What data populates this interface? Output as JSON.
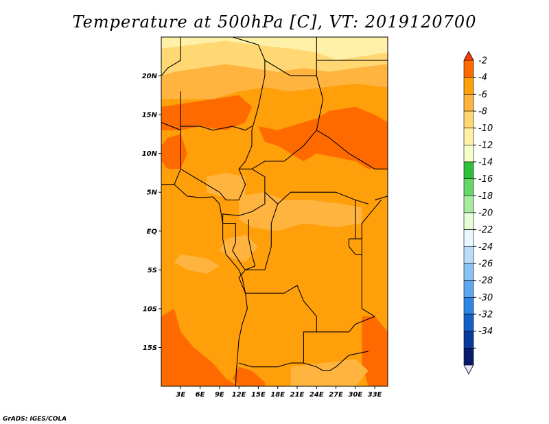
{
  "title": "Temperature at 500hPa [C], VT: 2019120700",
  "credit": "GrADS: IGES/COLA",
  "map": {
    "lon_range": [
      0,
      35
    ],
    "lat_range": [
      -20,
      25
    ],
    "lon_ticks": [
      {
        "value": 3,
        "label": "3E"
      },
      {
        "value": 6,
        "label": "6E"
      },
      {
        "value": 9,
        "label": "9E"
      },
      {
        "value": 12,
        "label": "12E"
      },
      {
        "value": 15,
        "label": "15E"
      },
      {
        "value": 18,
        "label": "18E"
      },
      {
        "value": 21,
        "label": "21E"
      },
      {
        "value": 24,
        "label": "24E"
      },
      {
        "value": 27,
        "label": "27E"
      },
      {
        "value": 30,
        "label": "30E"
      },
      {
        "value": 33,
        "label": "33E"
      }
    ],
    "lat_ticks": [
      {
        "value": 20,
        "label": "20N"
      },
      {
        "value": 15,
        "label": "15N"
      },
      {
        "value": 10,
        "label": "10N"
      },
      {
        "value": 5,
        "label": "5N"
      },
      {
        "value": 0,
        "label": "EQ"
      },
      {
        "value": -5,
        "label": "5S"
      },
      {
        "value": -10,
        "label": "10S"
      },
      {
        "value": -15,
        "label": "15S"
      }
    ],
    "colors": {
      "c2": "#ff6a00",
      "c4": "#ff9f0a",
      "c6": "#ffb440",
      "c8": "#ffd873",
      "c10": "#fff0a8"
    },
    "regions": [
      {
        "level": "c10",
        "poly": [
          [
            0,
            25
          ],
          [
            35,
            25
          ],
          [
            35,
            23
          ],
          [
            31,
            22.5
          ],
          [
            27,
            22
          ],
          [
            24,
            23
          ],
          [
            20,
            23.5
          ],
          [
            14,
            24
          ],
          [
            10,
            24.5
          ],
          [
            5,
            24
          ],
          [
            0,
            23.5
          ]
        ]
      },
      {
        "level": "c8",
        "poly": [
          [
            0,
            23.5
          ],
          [
            5,
            24
          ],
          [
            10,
            24.5
          ],
          [
            14,
            24
          ],
          [
            20,
            23.5
          ],
          [
            24,
            23
          ],
          [
            27,
            22
          ],
          [
            31,
            22.5
          ],
          [
            35,
            23
          ],
          [
            35,
            21.5
          ],
          [
            30,
            21
          ],
          [
            26,
            20.5
          ],
          [
            22,
            21
          ],
          [
            18,
            20.5
          ],
          [
            14,
            21
          ],
          [
            10,
            21.5
          ],
          [
            6,
            21
          ],
          [
            2,
            20.5
          ],
          [
            0,
            20
          ]
        ]
      },
      {
        "level": "c6",
        "poly": [
          [
            0,
            20
          ],
          [
            2,
            20.5
          ],
          [
            6,
            21
          ],
          [
            10,
            21.5
          ],
          [
            14,
            21
          ],
          [
            18,
            20.5
          ],
          [
            22,
            21
          ],
          [
            26,
            20.5
          ],
          [
            30,
            21
          ],
          [
            35,
            21.5
          ],
          [
            35,
            18.5
          ],
          [
            30,
            19
          ],
          [
            25,
            18.5
          ],
          [
            20,
            18
          ],
          [
            16,
            18.5
          ],
          [
            12,
            18
          ],
          [
            8,
            17
          ],
          [
            4,
            17
          ],
          [
            0,
            17
          ]
        ]
      },
      {
        "level": "c2",
        "poly": [
          [
            0,
            16
          ],
          [
            4,
            16.5
          ],
          [
            8,
            17
          ],
          [
            12,
            17.5
          ],
          [
            14,
            16
          ],
          [
            13,
            14
          ],
          [
            10,
            13
          ],
          [
            6,
            13.5
          ],
          [
            3,
            13
          ],
          [
            0,
            13
          ]
        ]
      },
      {
        "level": "c2",
        "poly": [
          [
            15,
            13.5
          ],
          [
            18,
            13
          ],
          [
            20,
            13.5
          ],
          [
            22,
            14
          ],
          [
            24,
            14.5
          ],
          [
            26,
            15.5
          ],
          [
            30,
            16
          ],
          [
            33,
            15
          ],
          [
            35,
            14
          ],
          [
            35,
            8
          ],
          [
            32,
            8
          ],
          [
            30,
            9
          ],
          [
            27,
            9.5
          ],
          [
            24,
            10
          ],
          [
            22,
            9
          ],
          [
            20,
            10
          ],
          [
            18,
            11
          ],
          [
            16,
            11.5
          ]
        ]
      },
      {
        "level": "c2",
        "poly": [
          [
            1,
            12
          ],
          [
            3,
            12.5
          ],
          [
            4,
            10
          ],
          [
            3,
            8
          ],
          [
            1,
            8
          ],
          [
            0,
            9
          ],
          [
            0,
            11
          ]
        ]
      },
      {
        "level": "c6",
        "poly": [
          [
            7,
            7
          ],
          [
            10,
            7.5
          ],
          [
            13,
            7
          ],
          [
            13,
            4.5
          ],
          [
            11,
            4
          ],
          [
            9,
            4.5
          ],
          [
            7,
            5
          ]
        ]
      },
      {
        "level": "c6",
        "poly": [
          [
            12,
            4.5
          ],
          [
            16,
            5
          ],
          [
            19,
            4
          ],
          [
            23,
            4
          ],
          [
            28,
            3.5
          ],
          [
            31,
            3
          ],
          [
            31,
            1
          ],
          [
            27,
            0.5
          ],
          [
            22,
            1
          ],
          [
            18,
            0
          ],
          [
            14,
            0.5
          ],
          [
            12,
            1.5
          ]
        ]
      },
      {
        "level": "c6",
        "poly": [
          [
            10,
            -1
          ],
          [
            13,
            -0.5
          ],
          [
            15,
            -2
          ],
          [
            13,
            -4
          ],
          [
            11,
            -3.5
          ],
          [
            9,
            -2.5
          ]
        ]
      },
      {
        "level": "c6",
        "poly": [
          [
            3,
            -3
          ],
          [
            7,
            -3.5
          ],
          [
            9,
            -4.5
          ],
          [
            7,
            -5.5
          ],
          [
            4,
            -5
          ],
          [
            2,
            -4
          ]
        ]
      },
      {
        "level": "c2",
        "poly": [
          [
            0,
            -11
          ],
          [
            2,
            -10
          ],
          [
            3,
            -13
          ],
          [
            5,
            -15
          ],
          [
            8,
            -17
          ],
          [
            10,
            -19
          ],
          [
            12,
            -20
          ],
          [
            0,
            -20
          ]
        ]
      },
      {
        "level": "c2",
        "poly": [
          [
            12,
            -17.5
          ],
          [
            14,
            -18
          ],
          [
            16,
            -19.5
          ],
          [
            16,
            -20
          ],
          [
            12,
            -20
          ],
          [
            11,
            -19
          ]
        ]
      },
      {
        "level": "c2",
        "poly": [
          [
            31,
            -11
          ],
          [
            33,
            -11
          ],
          [
            35,
            -13
          ],
          [
            35,
            -20
          ],
          [
            32,
            -20
          ],
          [
            31,
            -17
          ],
          [
            31,
            -14
          ]
        ]
      },
      {
        "level": "c6",
        "poly": [
          [
            20,
            -17.5
          ],
          [
            25,
            -17
          ],
          [
            30,
            -16.5
          ],
          [
            32,
            -18
          ],
          [
            30,
            -20
          ],
          [
            20,
            -20
          ]
        ]
      }
    ],
    "borders": [
      [
        [
          3,
          25
        ],
        [
          3,
          22
        ],
        [
          1,
          21
        ],
        [
          0,
          20
        ]
      ],
      [
        [
          0,
          14
        ],
        [
          3,
          13
        ],
        [
          3,
          11
        ]
      ],
      [
        [
          3,
          18
        ],
        [
          3,
          13
        ]
      ],
      [
        [
          3,
          13.5
        ],
        [
          6,
          13.5
        ],
        [
          8,
          13
        ],
        [
          11,
          13.5
        ],
        [
          13,
          13
        ],
        [
          14,
          13.5
        ]
      ],
      [
        [
          3,
          11
        ],
        [
          3,
          8
        ],
        [
          2,
          6
        ],
        [
          0,
          6
        ]
      ],
      [
        [
          3,
          8
        ],
        [
          5,
          7
        ],
        [
          7,
          6
        ],
        [
          9,
          5
        ],
        [
          10,
          4
        ],
        [
          12,
          4
        ],
        [
          13,
          6
        ],
        [
          12,
          8
        ],
        [
          13,
          9
        ],
        [
          14,
          11
        ],
        [
          14,
          13
        ]
      ],
      [
        [
          11,
          25
        ],
        [
          15,
          24
        ],
        [
          16,
          22
        ],
        [
          16,
          20
        ],
        [
          15,
          16
        ],
        [
          14,
          13
        ]
      ],
      [
        [
          16,
          22
        ],
        [
          20,
          20
        ],
        [
          24,
          20
        ],
        [
          24,
          22
        ]
      ],
      [
        [
          24,
          22
        ],
        [
          24,
          25
        ]
      ],
      [
        [
          24,
          20
        ],
        [
          25,
          17
        ],
        [
          24,
          13
        ],
        [
          22,
          11
        ],
        [
          19,
          9
        ],
        [
          16,
          9
        ],
        [
          14,
          8
        ],
        [
          12,
          8
        ]
      ],
      [
        [
          24,
          22
        ],
        [
          35,
          22
        ]
      ],
      [
        [
          24,
          13
        ],
        [
          26,
          12
        ],
        [
          29,
          10
        ],
        [
          31,
          9
        ],
        [
          33,
          8
        ],
        [
          35,
          8
        ]
      ],
      [
        [
          14,
          8
        ],
        [
          16,
          7
        ],
        [
          16,
          5
        ],
        [
          18,
          3.5
        ],
        [
          20,
          5
        ],
        [
          23,
          5
        ],
        [
          25,
          5
        ],
        [
          27,
          5
        ],
        [
          30,
          4
        ],
        [
          32,
          3.5
        ]
      ],
      [
        [
          16,
          5
        ],
        [
          16,
          3.5
        ],
        [
          14,
          2.5
        ],
        [
          12,
          2
        ],
        [
          9.5,
          2.2
        ],
        [
          9.5,
          1
        ],
        [
          11.5,
          1
        ],
        [
          11.5,
          -1.5
        ],
        [
          11,
          -2.5
        ],
        [
          12.5,
          -4.5
        ]
      ],
      [
        [
          13.5,
          1.5
        ],
        [
          13.5,
          -1
        ],
        [
          14,
          -3
        ],
        [
          14.5,
          -4.5
        ],
        [
          13,
          -5
        ],
        [
          12.5,
          -4.5
        ]
      ],
      [
        [
          18,
          3.5
        ],
        [
          17,
          1
        ],
        [
          17,
          -2
        ],
        [
          16,
          -5
        ],
        [
          13,
          -5
        ],
        [
          12,
          -6
        ],
        [
          13,
          -8
        ]
      ],
      [
        [
          13,
          -8
        ],
        [
          16,
          -8
        ],
        [
          19,
          -8
        ],
        [
          21,
          -7
        ],
        [
          22,
          -9
        ],
        [
          24,
          -11
        ],
        [
          24,
          -13
        ],
        [
          22,
          -13
        ],
        [
          22,
          -17
        ],
        [
          20,
          -17
        ],
        [
          18,
          -17.5
        ],
        [
          14,
          -17.5
        ],
        [
          12,
          -17
        ]
      ],
      [
        [
          24,
          -13
        ],
        [
          27,
          -13
        ],
        [
          29,
          -13
        ],
        [
          30,
          -12
        ],
        [
          33,
          -11
        ]
      ],
      [
        [
          22,
          -17
        ],
        [
          24,
          -17.5
        ],
        [
          25,
          -18
        ],
        [
          26,
          -18
        ],
        [
          27,
          -17.5
        ],
        [
          29,
          -16
        ],
        [
          32,
          -15.5
        ]
      ],
      [
        [
          29,
          -1
        ],
        [
          31,
          -1
        ],
        [
          31,
          1
        ],
        [
          32,
          2
        ],
        [
          33,
          3
        ],
        [
          34,
          4
        ]
      ],
      [
        [
          29,
          -1
        ],
        [
          29,
          -2
        ],
        [
          30,
          -3
        ],
        [
          31,
          -3
        ],
        [
          31,
          -1
        ]
      ],
      [
        [
          30,
          4
        ],
        [
          30,
          -1
        ]
      ],
      [
        [
          31,
          -3
        ],
        [
          31,
          -10
        ],
        [
          33,
          -11
        ]
      ],
      [
        [
          33,
          4
        ],
        [
          35,
          4.5
        ]
      ]
    ],
    "coast": [
      [
        0,
        6
      ],
      [
        2,
        6
      ],
      [
        4,
        4.5
      ],
      [
        6,
        4.3
      ],
      [
        8,
        4.4
      ],
      [
        9,
        3.5
      ],
      [
        9.5,
        1
      ],
      [
        9.5,
        -1
      ],
      [
        10,
        -3
      ],
      [
        11,
        -4
      ],
      [
        12,
        -5
      ],
      [
        12.5,
        -6
      ],
      [
        13,
        -8
      ],
      [
        13.3,
        -10
      ],
      [
        12.5,
        -12
      ],
      [
        12,
        -14
      ],
      [
        11.8,
        -16
      ],
      [
        11.6,
        -18
      ],
      [
        11.5,
        -20
      ]
    ],
    "colorbar": [
      {
        "color": "#ff6a00",
        "label": "-2"
      },
      {
        "color": "#ff9f0a",
        "label": "-4"
      },
      {
        "color": "#ffb440",
        "label": "-6"
      },
      {
        "color": "#ffd873",
        "label": "-8"
      },
      {
        "color": "#fff0a8",
        "label": "-10"
      },
      {
        "color": "#f5ffc8",
        "label": "-12"
      },
      {
        "color": "#2fbf3b",
        "label": "-14"
      },
      {
        "color": "#67d668",
        "label": "-16"
      },
      {
        "color": "#a8ea9e",
        "label": "-18"
      },
      {
        "color": "#e6ffd8",
        "label": "-20"
      },
      {
        "color": "#e8f7ff",
        "label": "-22"
      },
      {
        "color": "#b8ddfb",
        "label": "-24"
      },
      {
        "color": "#8bc2f4",
        "label": "-26"
      },
      {
        "color": "#5ea6ee",
        "label": "-28"
      },
      {
        "color": "#2f85e6",
        "label": "-30"
      },
      {
        "color": "#1560c8",
        "label": "-32"
      },
      {
        "color": "#0a3a9c",
        "label": "-34"
      },
      {
        "color": "#0a1a6a",
        "label": ""
      }
    ],
    "colorbar_ends": {
      "top": "#ff3c0a",
      "bottom": "#e6e6ff"
    }
  }
}
